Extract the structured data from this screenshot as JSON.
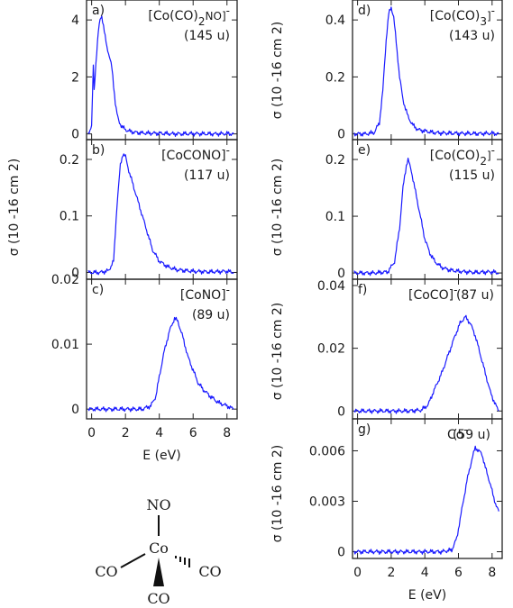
{
  "chart_data": [
    {
      "type": "line",
      "panel_letter": "a)",
      "species": "[Co(CO)",
      "species_sub": "2",
      "species_tail": "NO]",
      "species_sup": "-",
      "mass": "(145 u)",
      "ylabel": "",
      "ylim": [
        -0.2,
        4.7
      ],
      "yticks": [
        0,
        2,
        4
      ],
      "ytick_labels": [
        "0",
        "2",
        "4"
      ],
      "xlim": [
        -0.3,
        8.6
      ],
      "xticks": [
        0,
        2,
        4,
        6,
        8
      ],
      "xtick_labels": [],
      "series": [
        {
          "color": "#1a1aff",
          "x": [
            -0.2,
            0.0,
            0.1,
            0.15,
            0.2,
            0.3,
            0.4,
            0.5,
            0.6,
            0.7,
            0.8,
            0.9,
            1.0,
            1.1,
            1.2,
            1.3,
            1.4,
            1.5,
            1.6,
            1.8,
            2.0,
            2.2,
            2.5,
            3.0,
            4.0,
            5.0,
            6.0,
            7.0,
            8.0,
            8.4
          ],
          "y": [
            0.0,
            0.3,
            2.4,
            1.5,
            2.0,
            2.9,
            3.6,
            4.0,
            4.15,
            3.8,
            3.4,
            3.05,
            2.85,
            2.6,
            2.3,
            1.7,
            1.1,
            0.7,
            0.45,
            0.25,
            0.15,
            0.1,
            0.06,
            0.03,
            0.02,
            0.0,
            0.01,
            0.0,
            0.01,
            0.0
          ]
        }
      ]
    },
    {
      "type": "line",
      "panel_letter": "b)",
      "species": "[CoCONO]",
      "species_sub": "",
      "species_tail": "",
      "species_sup": "-",
      "mass": "(117 u)",
      "ylabel": "σ (10 -16 cm 2)",
      "ylim": [
        -0.012,
        0.235
      ],
      "yticks": [
        0,
        0.1,
        0.2
      ],
      "ytick_labels": [
        "0",
        "0.1",
        "0.2"
      ],
      "xlim": [
        -0.3,
        8.6
      ],
      "xticks": [
        0,
        2,
        4,
        6,
        8
      ],
      "xtick_labels": [],
      "series": [
        {
          "color": "#1a1aff",
          "x": [
            -0.2,
            0.5,
            1.0,
            1.3,
            1.5,
            1.7,
            1.85,
            2.0,
            2.2,
            2.4,
            2.6,
            2.8,
            3.0,
            3.3,
            3.6,
            4.0,
            4.5,
            5.0,
            6.0,
            7.0,
            8.0,
            8.4
          ],
          "y": [
            0.0,
            0.0,
            0.003,
            0.02,
            0.12,
            0.19,
            0.21,
            0.205,
            0.18,
            0.16,
            0.14,
            0.12,
            0.1,
            0.07,
            0.04,
            0.02,
            0.01,
            0.005,
            0.002,
            0.001,
            0.002,
            0.0
          ]
        }
      ]
    },
    {
      "type": "line",
      "panel_letter": "c)",
      "species": "[CoNO]",
      "species_sub": "",
      "species_tail": "",
      "species_sup": "-",
      "mass": "(89 u)",
      "ylabel": "",
      "ylim": [
        -0.0015,
        0.02
      ],
      "yticks": [
        0,
        0.01,
        0.02
      ],
      "ytick_labels": [
        "0",
        "0.01",
        "0.02"
      ],
      "xlim": [
        -0.3,
        8.6
      ],
      "xticks": [
        0,
        2,
        4,
        6,
        8
      ],
      "xtick_labels": [
        "0",
        "2",
        "4",
        "6",
        "8"
      ],
      "xlabel": "E (eV)",
      "series": [
        {
          "color": "#1a1aff",
          "x": [
            -0.2,
            1.0,
            2.0,
            3.0,
            3.5,
            3.8,
            4.0,
            4.3,
            4.6,
            4.9,
            5.1,
            5.4,
            5.7,
            6.0,
            6.3,
            6.6,
            7.0,
            7.5,
            8.0,
            8.4
          ],
          "y": [
            0.0,
            0.0,
            0.0,
            0.0,
            0.0005,
            0.002,
            0.005,
            0.009,
            0.012,
            0.014,
            0.0135,
            0.011,
            0.008,
            0.006,
            0.004,
            0.003,
            0.002,
            0.001,
            0.0005,
            0.0
          ]
        }
      ]
    },
    {
      "type": "line",
      "panel_letter": "d)",
      "species": "[Co(CO)",
      "species_sub": "3",
      "species_tail": "]",
      "species_sup": "-",
      "mass": "(143 u)",
      "ylabel": "σ (10 -16 cm 2)",
      "ylim": [
        -0.02,
        0.47
      ],
      "yticks": [
        0,
        0.2,
        0.4
      ],
      "ytick_labels": [
        "0",
        "0.2",
        "0.4"
      ],
      "xlim": [
        -0.3,
        8.6
      ],
      "xticks": [
        0,
        2,
        4,
        6,
        8
      ],
      "xtick_labels": [],
      "series": [
        {
          "color": "#1a1aff",
          "x": [
            -0.2,
            0.5,
            1.0,
            1.3,
            1.5,
            1.7,
            1.85,
            2.0,
            2.15,
            2.3,
            2.5,
            2.7,
            3.0,
            3.3,
            3.6,
            4.0,
            4.5,
            5.0,
            6.0,
            7.0,
            8.0,
            8.4
          ],
          "y": [
            0.0,
            0.0,
            0.005,
            0.04,
            0.15,
            0.33,
            0.42,
            0.445,
            0.41,
            0.32,
            0.2,
            0.12,
            0.06,
            0.03,
            0.015,
            0.01,
            0.005,
            0.003,
            0.002,
            0.001,
            0.002,
            0.0
          ]
        }
      ]
    },
    {
      "type": "line",
      "panel_letter": "e)",
      "species": "[Co(CO)",
      "species_sub": "2",
      "species_tail": "]",
      "species_sup": "-",
      "mass": "(115 u)",
      "ylabel": "σ (10 -16 cm 2)",
      "ylim": [
        -0.011,
        0.235
      ],
      "yticks": [
        0,
        0.1,
        0.2
      ],
      "ytick_labels": [
        "0",
        "0.1",
        "0.2"
      ],
      "xlim": [
        -0.3,
        8.6
      ],
      "xticks": [
        0,
        2,
        4,
        6,
        8
      ],
      "xtick_labels": [],
      "series": [
        {
          "color": "#1a1aff",
          "x": [
            -0.2,
            1.0,
            1.8,
            2.2,
            2.5,
            2.7,
            2.9,
            3.0,
            3.2,
            3.4,
            3.6,
            3.8,
            4.0,
            4.3,
            4.6,
            5.0,
            5.5,
            6.0,
            7.0,
            8.0,
            8.4
          ],
          "y": [
            0.0,
            0.0,
            0.002,
            0.02,
            0.08,
            0.15,
            0.19,
            0.2,
            0.18,
            0.15,
            0.12,
            0.09,
            0.06,
            0.035,
            0.02,
            0.01,
            0.005,
            0.003,
            0.001,
            0.002,
            0.0
          ]
        }
      ]
    },
    {
      "type": "line",
      "panel_letter": "f)",
      "species": "[CoCO]",
      "species_sub": "",
      "species_tail": "",
      "species_sup": "-",
      "mass": "(87 u)",
      "ylabel": "σ (10 -16 cm 2)",
      "ylim": [
        -0.0025,
        0.042
      ],
      "yticks": [
        0,
        0.02,
        0.04
      ],
      "ytick_labels": [
        "0",
        "0.02",
        "0.04"
      ],
      "xlim": [
        -0.3,
        8.6
      ],
      "xticks": [
        0,
        2,
        4,
        6,
        8
      ],
      "xtick_labels": [],
      "series": [
        {
          "color": "#1a1aff",
          "x": [
            -0.2,
            1.0,
            2.0,
            3.0,
            3.8,
            4.2,
            4.5,
            5.0,
            5.4,
            5.8,
            6.1,
            6.4,
            6.7,
            7.0,
            7.3,
            7.6,
            7.9,
            8.2,
            8.4
          ],
          "y": [
            0.0,
            0.0,
            0.0,
            0.0,
            0.0003,
            0.002,
            0.006,
            0.012,
            0.018,
            0.024,
            0.028,
            0.03,
            0.028,
            0.024,
            0.018,
            0.012,
            0.006,
            0.002,
            0.0
          ]
        }
      ]
    },
    {
      "type": "line",
      "panel_letter": "g)",
      "species": "Co",
      "species_sub": "",
      "species_tail": "",
      "species_sup": "-",
      "mass": "(59 u)",
      "ylabel": "σ (10 -16 cm 2)",
      "ylim": [
        -0.0004,
        0.0079
      ],
      "yticks": [
        0,
        0.003,
        0.006
      ],
      "ytick_labels": [
        "0",
        "0.003",
        "0.006"
      ],
      "xlim": [
        -0.3,
        8.6
      ],
      "xticks": [
        0,
        2,
        4,
        6,
        8
      ],
      "xtick_labels": [
        "0",
        "2",
        "4",
        "6",
        "8"
      ],
      "xlabel": "E (eV)",
      "series": [
        {
          "color": "#1a1aff",
          "x": [
            -0.2,
            1.0,
            2.0,
            3.0,
            4.0,
            5.0,
            5.6,
            5.9,
            6.2,
            6.5,
            6.8,
            7.0,
            7.2,
            7.4,
            7.6,
            7.9,
            8.1,
            8.3,
            8.4
          ],
          "y": [
            0.0,
            0.0,
            0.0,
            0.0,
            0.0,
            0.0,
            0.0001,
            0.0008,
            0.0025,
            0.0042,
            0.0055,
            0.0062,
            0.006,
            0.0058,
            0.005,
            0.004,
            0.0032,
            0.0026,
            0.0024
          ]
        }
      ]
    }
  ],
  "molecule": {
    "top": "NO",
    "center": "Co",
    "left": "CO",
    "right": "CO",
    "bottom": "CO"
  }
}
